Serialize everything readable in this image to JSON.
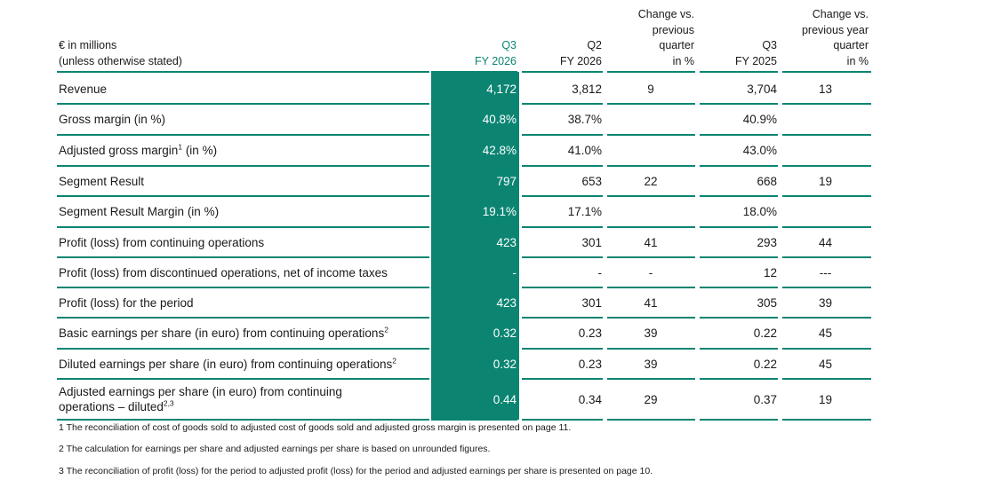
{
  "header": {
    "label_line1": "€ in millions",
    "label_line2": "(unless otherwise stated)",
    "columns": [
      {
        "key": "q3_fy2026",
        "lines": [
          "Q3",
          "FY 2026"
        ]
      },
      {
        "key": "q2_fy2026",
        "lines": [
          "Q2",
          "FY 2026"
        ]
      },
      {
        "key": "chg_prev_quarter",
        "lines": [
          "Change vs.",
          "previous",
          "quarter",
          "in %"
        ]
      },
      {
        "key": "q3_fy2025",
        "lines": [
          "Q3",
          "FY 2025"
        ]
      },
      {
        "key": "chg_prev_year",
        "lines": [
          "Change vs.",
          "previous year",
          "quarter",
          "in %"
        ]
      }
    ]
  },
  "rows": [
    {
      "label": "Revenue",
      "sup": "",
      "q3_fy2026": "4,172",
      "q2_fy2026": "3,812",
      "chg_q": "9",
      "q3_fy2025": "3,704",
      "chg_y": "13"
    },
    {
      "label": "Gross margin (in %)",
      "sup": "",
      "q3_fy2026": "40.8%",
      "q2_fy2026": "38.7%",
      "chg_q": "",
      "q3_fy2025": "40.9%",
      "chg_y": ""
    },
    {
      "label": "Adjusted gross margin",
      "sup": "1",
      "suffix": " (in %)",
      "q3_fy2026": "42.8%",
      "q2_fy2026": "41.0%",
      "chg_q": "",
      "q3_fy2025": "43.0%",
      "chg_y": ""
    },
    {
      "label": "Segment Result",
      "sup": "",
      "q3_fy2026": "797",
      "q2_fy2026": "653",
      "chg_q": "22",
      "q3_fy2025": "668",
      "chg_y": "19"
    },
    {
      "label": "Segment Result Margin (in %)",
      "sup": "",
      "q3_fy2026": "19.1%",
      "q2_fy2026": "17.1%",
      "chg_q": "",
      "q3_fy2025": "18.0%",
      "chg_y": ""
    },
    {
      "label": "Profit (loss) from continuing operations",
      "sup": "",
      "q3_fy2026": "423",
      "q2_fy2026": "301",
      "chg_q": "41",
      "q3_fy2025": "293",
      "chg_y": "44"
    },
    {
      "label": "Profit (loss) from discontinued operations, net of income taxes",
      "sup": "",
      "q3_fy2026": "-",
      "q2_fy2026": "-",
      "chg_q": "-",
      "q3_fy2025": "12",
      "chg_y": "---"
    },
    {
      "label": "Profit (loss) for the period",
      "sup": "",
      "q3_fy2026": "423",
      "q2_fy2026": "301",
      "chg_q": "41",
      "q3_fy2025": "305",
      "chg_y": "39"
    },
    {
      "label": "Basic earnings per share (in euro) from continuing operations",
      "sup": "2",
      "q3_fy2026": "0.32",
      "q2_fy2026": "0.23",
      "chg_q": "39",
      "q3_fy2025": "0.22",
      "chg_y": "45"
    },
    {
      "label": "Diluted earnings per share (in euro) from continuing operations",
      "sup": "2",
      "q3_fy2026": "0.32",
      "q2_fy2026": "0.23",
      "chg_q": "39",
      "q3_fy2025": "0.22",
      "chg_y": "45"
    },
    {
      "label": "Adjusted earnings per share (in euro) from continuing",
      "label_line2": "operations – diluted",
      "sup": "2,3",
      "q3_fy2026": "0.44",
      "q2_fy2026": "0.34",
      "chg_q": "29",
      "q3_fy2025": "0.37",
      "chg_y": "19"
    }
  ],
  "footnotes": [
    "1 The reconciliation of cost of goods sold to adjusted cost of goods sold and adjusted gross margin is presented on page 11.",
    "2 The calculation for earnings per share and adjusted earnings per share is based on unrounded figures.",
    "3 The reconciliation of profit (loss) for the period to adjusted profit (loss) for the period and adjusted earnings per share is presented on page 10."
  ],
  "colors": {
    "accent": "#0b8572",
    "text": "#1a1a1a"
  }
}
